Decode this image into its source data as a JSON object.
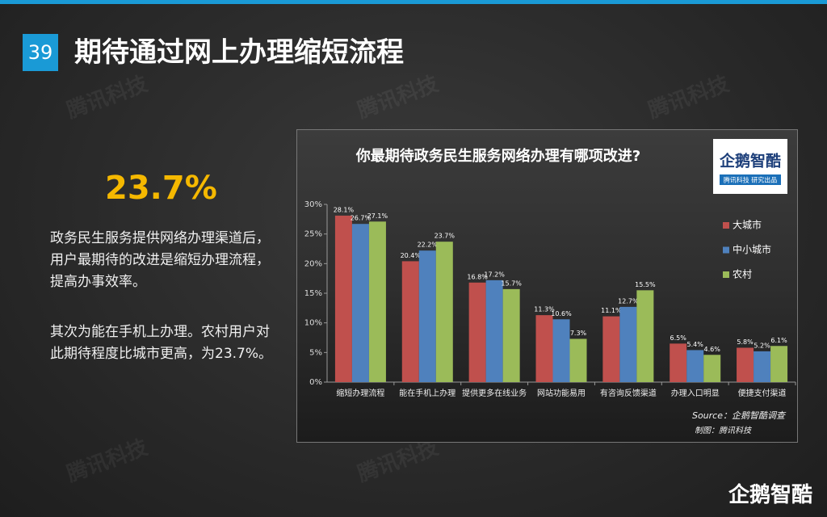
{
  "slide": {
    "page_number": "39",
    "title": "期待通过网上办理缩短流程",
    "highlight": "23.7%",
    "paragraphs": [
      "政务民生服务提供网络办理渠道后，用户最期待的改进是缩短办理流程，提高办事效率。",
      "其次为能在手机上办理。农村用户对此期待程度比城市更高，为23.7%。"
    ],
    "watermark": "腾讯科技",
    "logo": {
      "name": "企鹅智酷",
      "tagline": "腾讯科技 研究出品"
    },
    "source": "Source：企鹅智酷调查",
    "credit": "制图：腾讯科技"
  },
  "chart_data": {
    "type": "bar",
    "title": "你最期待政务民生服务网络办理有哪项改进?",
    "categories": [
      "缩短办理流程",
      "能在手机上办理",
      "提供更多在线业务",
      "网站功能易用",
      "有咨询反馈渠道",
      "办理入口明显",
      "便捷支付渠道"
    ],
    "series": [
      {
        "name": "大城市",
        "color": "#c0504d",
        "values": [
          28.1,
          20.4,
          16.8,
          11.3,
          11.1,
          6.5,
          5.8
        ],
        "value_labels": [
          "28.1%",
          "20.4%",
          "16.8%",
          "11.3%",
          "11.1%",
          "6.5%",
          "5.8%"
        ]
      },
      {
        "name": "中小城市",
        "color": "#4f81bd",
        "values": [
          26.7,
          22.2,
          17.2,
          10.6,
          12.7,
          5.4,
          5.2
        ],
        "value_labels": [
          "26.7%",
          "22.2%",
          "17.2%",
          "10.6%",
          "12.7%",
          "5.4%",
          "5.2%"
        ]
      },
      {
        "name": "农村",
        "color": "#9bbb59",
        "values": [
          27.1,
          23.7,
          15.7,
          7.3,
          15.5,
          4.6,
          6.1
        ],
        "value_labels": [
          "27.1%",
          "23.7%",
          "15.7%",
          "7.3%",
          "15.5%",
          "4.6%",
          "6.1%"
        ]
      }
    ],
    "ylim": [
      0,
      30
    ],
    "yticks": [
      {
        "value": 0,
        "label": "0%"
      },
      {
        "value": 5,
        "label": "5%"
      },
      {
        "value": 10,
        "label": "10%"
      },
      {
        "value": 15,
        "label": "15%"
      },
      {
        "value": 20,
        "label": "20%"
      },
      {
        "value": 25,
        "label": "25%"
      },
      {
        "value": 30,
        "label": "30%"
      }
    ],
    "grid": false,
    "legend": "right"
  }
}
